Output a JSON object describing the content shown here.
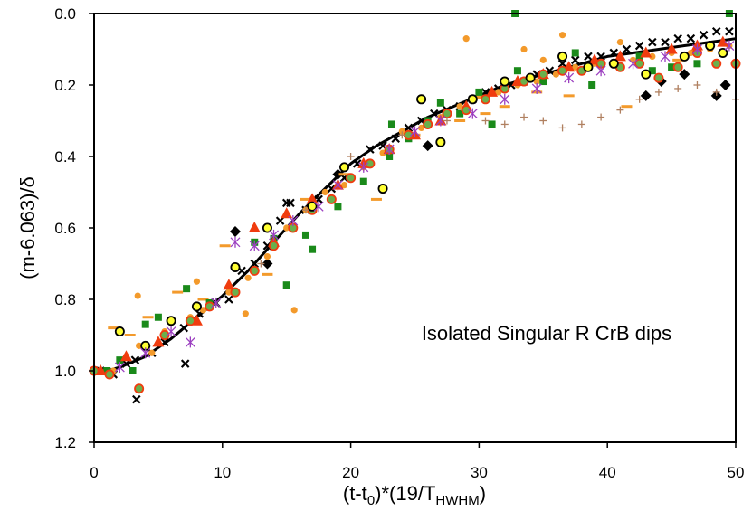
{
  "chart_data": {
    "type": "scatter",
    "title": "",
    "annotation": "Isolated Singular R CrB dips",
    "xlabel": {
      "main": "(t-t",
      "sub1": "0",
      "mid": ")*(19/T",
      "sub2": "HWHM",
      "end": ")"
    },
    "ylabel": "(m-6.063)/δ",
    "xlim": [
      0,
      50
    ],
    "ylim": [
      1.2,
      0.0
    ],
    "y_inverted": true,
    "xticks": [
      "0",
      "10",
      "20",
      "30",
      "40",
      "50"
    ],
    "yticks": [
      "0.0",
      "0.2",
      "0.4",
      "0.6",
      "0.8",
      "1.0",
      "1.2"
    ],
    "legend": "none",
    "fit_curve": {
      "name": "mean template",
      "x": [
        0,
        2,
        4,
        6,
        8,
        10,
        12,
        14,
        16,
        18,
        20,
        22,
        24,
        26,
        28,
        30,
        32,
        34,
        36,
        38,
        40,
        42,
        44,
        46,
        48,
        50
      ],
      "y": [
        1.01,
        0.99,
        0.96,
        0.91,
        0.85,
        0.79,
        0.72,
        0.64,
        0.56,
        0.49,
        0.42,
        0.37,
        0.33,
        0.29,
        0.26,
        0.23,
        0.2,
        0.18,
        0.16,
        0.14,
        0.12,
        0.11,
        0.1,
        0.09,
        0.08,
        0.07
      ]
    },
    "series": [
      {
        "name": "black crosses",
        "marker": "x",
        "color": "#000000",
        "x": [
          0.5,
          1.5,
          2.5,
          3.2,
          4.5,
          5.5,
          7,
          8.2,
          9.5,
          10.5,
          11.5,
          12.5,
          13.5,
          14.5,
          15.3,
          16.5,
          17.5,
          18.5,
          19.5,
          20.5,
          21.5,
          22.5,
          23.5,
          24.5,
          25.5,
          26.5,
          27.5,
          28.5,
          29.5,
          30.5,
          31.5,
          32.5,
          33.5,
          34.5,
          35.5,
          36.5,
          37.5,
          38.5,
          39.5,
          40.5,
          41.5,
          42.5,
          43.5,
          44.5,
          45.5,
          46.5,
          47.5,
          48.5,
          49.5,
          3.3,
          7.1,
          15.0
        ],
        "y": [
          1.0,
          1.01,
          0.98,
          0.97,
          0.95,
          0.92,
          0.88,
          0.84,
          0.81,
          0.8,
          0.72,
          0.7,
          0.65,
          0.58,
          0.53,
          0.55,
          0.52,
          0.49,
          0.46,
          0.42,
          0.38,
          0.37,
          0.35,
          0.32,
          0.3,
          0.28,
          0.27,
          0.26,
          0.24,
          0.22,
          0.21,
          0.2,
          0.19,
          0.17,
          0.16,
          0.14,
          0.13,
          0.12,
          0.12,
          0.11,
          0.1,
          0.09,
          0.08,
          0.08,
          0.07,
          0.07,
          0.06,
          0.05,
          0.05,
          1.08,
          0.98,
          0.53
        ]
      },
      {
        "name": "black diamonds",
        "marker": "diamond",
        "color": "#000000",
        "x": [
          11,
          13.5,
          19,
          26,
          43,
          44.2,
          46,
          48.5,
          49.2
        ],
        "y": [
          0.61,
          0.7,
          0.45,
          0.37,
          0.23,
          0.19,
          0.17,
          0.23,
          0.2
        ]
      },
      {
        "name": "orange dots",
        "marker": "circle",
        "color": "#f39a2b",
        "x": [
          1.5,
          2.5,
          3.5,
          4.5,
          5.5,
          7.5,
          8.5,
          10.5,
          12,
          13.5,
          15,
          16.5,
          18,
          19.5,
          21,
          22.5,
          24,
          25.5,
          27,
          28.5,
          30,
          31.5,
          33,
          34.5,
          36,
          37.5,
          39,
          40.5,
          42,
          43.5,
          45,
          46.5,
          48,
          49.5,
          29,
          33.5,
          35,
          36.5,
          41,
          3.4,
          8.0,
          11.8,
          15.6
        ],
        "y": [
          1.0,
          0.96,
          0.93,
          0.95,
          0.89,
          0.85,
          0.83,
          0.78,
          0.74,
          0.68,
          0.6,
          0.55,
          0.5,
          0.48,
          0.43,
          0.39,
          0.33,
          0.32,
          0.29,
          0.26,
          0.23,
          0.22,
          0.2,
          0.19,
          0.17,
          0.15,
          0.14,
          0.14,
          0.13,
          0.12,
          0.11,
          0.11,
          0.1,
          0.09,
          0.07,
          0.1,
          0.13,
          0.06,
          0.08,
          0.79,
          0.75,
          0.84,
          0.83
        ]
      },
      {
        "name": "orange dashes",
        "marker": "dash",
        "color": "#f39a2b",
        "x": [
          1.5,
          4.2,
          6.5,
          8.5,
          10.2,
          13.5,
          16.5,
          19.5,
          22,
          25,
          28.5,
          30.5,
          32,
          34.5,
          37,
          41.5,
          45.5,
          2.8
        ],
        "y": [
          0.88,
          0.85,
          0.78,
          0.8,
          0.65,
          0.73,
          0.52,
          0.45,
          0.52,
          0.34,
          0.3,
          0.28,
          0.26,
          0.22,
          0.23,
          0.26,
          0.13,
          0.9
        ]
      },
      {
        "name": "green squares",
        "marker": "square",
        "color": "#1a8a1a",
        "x": [
          1,
          2,
          3,
          4,
          5,
          7.2,
          9,
          12.5,
          14,
          15,
          16.5,
          17,
          19,
          21,
          23,
          24.5,
          26,
          27,
          28.5,
          30,
          31,
          33,
          35,
          37.5,
          38.8,
          42.5,
          43.5,
          45,
          47,
          49.5,
          32.8,
          23.2
        ],
        "y": [
          1.0,
          0.97,
          1.0,
          0.87,
          0.85,
          0.77,
          0.81,
          0.64,
          0.63,
          0.76,
          0.62,
          0.66,
          0.54,
          0.47,
          0.4,
          0.35,
          0.3,
          0.25,
          0.28,
          0.22,
          0.31,
          0.16,
          0.19,
          0.11,
          0.2,
          0.12,
          0.16,
          0.15,
          0.14,
          0.0,
          0.0,
          0.31
        ]
      },
      {
        "name": "red triangles",
        "marker": "triangle",
        "color": "#f03c0f",
        "x": [
          0.5,
          2.5,
          5,
          8,
          10.5,
          12.5,
          14,
          15,
          17,
          19,
          21,
          23,
          25,
          27,
          29,
          31,
          33,
          35,
          37,
          39,
          41,
          43,
          45,
          47,
          49
        ],
        "y": [
          1.0,
          0.96,
          0.92,
          0.86,
          0.76,
          0.6,
          0.64,
          0.56,
          0.52,
          0.48,
          0.42,
          0.38,
          0.34,
          0.3,
          0.26,
          0.22,
          0.19,
          0.17,
          0.15,
          0.13,
          0.12,
          0.11,
          0.1,
          0.09,
          0.08
        ]
      },
      {
        "name": "red-outlined green dots",
        "marker": "ring",
        "color": "#f03c0f",
        "fill": "#6ab04c",
        "x": [
          0,
          1.2,
          3.5,
          5.5,
          7.5,
          9,
          11,
          12.5,
          14,
          15.5,
          17,
          18.5,
          20,
          21.5,
          23,
          24.5,
          26,
          27.5,
          29,
          30.5,
          32,
          33.5,
          35,
          36.5,
          38,
          39.5,
          41,
          42.5,
          44,
          45.5,
          47,
          48.5,
          50
        ],
        "y": [
          1.0,
          1.01,
          1.05,
          0.9,
          0.86,
          0.82,
          0.78,
          0.72,
          0.65,
          0.6,
          0.55,
          0.52,
          0.46,
          0.42,
          0.38,
          0.34,
          0.31,
          0.28,
          0.27,
          0.24,
          0.21,
          0.19,
          0.17,
          0.16,
          0.16,
          0.14,
          0.15,
          0.14,
          0.18,
          0.15,
          0.11,
          0.14,
          0.14
        ]
      },
      {
        "name": "yellow circles",
        "marker": "ring",
        "color": "#000000",
        "fill": "#ffff33",
        "x": [
          2,
          4,
          6,
          8,
          11,
          13.5,
          17,
          19.5,
          22.5,
          25.5,
          27,
          29.5,
          32,
          34,
          36.5,
          38.5,
          40.5,
          43,
          46,
          48,
          49
        ],
        "y": [
          0.89,
          0.93,
          0.86,
          0.82,
          0.71,
          0.6,
          0.54,
          0.43,
          0.49,
          0.24,
          0.36,
          0.24,
          0.19,
          0.18,
          0.12,
          0.15,
          0.14,
          0.17,
          0.12,
          0.09,
          0.11
        ]
      },
      {
        "name": "purple asterisks",
        "marker": "asterisk",
        "color": "#9b3fc0",
        "x": [
          2,
          4,
          6,
          7.5,
          9.5,
          11,
          12.5,
          14,
          15.5,
          17.5,
          19,
          21,
          23,
          25,
          27,
          29.5,
          32,
          34.5,
          37,
          39.5,
          42,
          44.5,
          47,
          49.5
        ],
        "y": [
          0.99,
          0.95,
          0.89,
          0.92,
          0.81,
          0.64,
          0.65,
          0.62,
          0.58,
          0.54,
          0.48,
          0.43,
          0.38,
          0.33,
          0.3,
          0.28,
          0.24,
          0.21,
          0.18,
          0.16,
          0.14,
          0.12,
          0.1,
          0.09
        ]
      },
      {
        "name": "brown plus",
        "marker": "plus",
        "color": "#b08060",
        "x": [
          13,
          16.5,
          20,
          24,
          27.5,
          30.5,
          32,
          33.5,
          35,
          36.5,
          38,
          39.5,
          41,
          42.5,
          44,
          45.5,
          47,
          48.5,
          50
        ],
        "y": [
          0.7,
          0.55,
          0.4,
          0.34,
          0.3,
          0.3,
          0.31,
          0.29,
          0.3,
          0.32,
          0.31,
          0.29,
          0.27,
          0.24,
          0.22,
          0.21,
          0.2,
          0.22,
          0.24
        ]
      }
    ]
  }
}
